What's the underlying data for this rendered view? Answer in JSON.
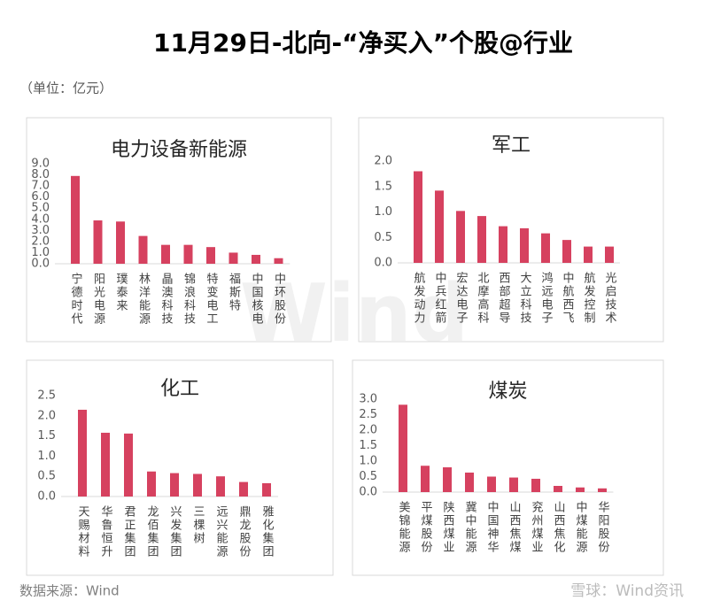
{
  "title": "11月29日-北向-“净买入”个股@行业",
  "unit": "（单位：亿元）",
  "source": "数据来源：Wind",
  "watermark": "Wind",
  "footer": "雪球：Wind资讯",
  "chart_data": [
    {
      "type": "bar",
      "title": "电力设备新能源",
      "color": "#d6415f",
      "categories": [
        "宁德时代",
        "阳光电源",
        "璞泰来",
        "林洋能源",
        "晶澳科技",
        "锦浪科技",
        "特变电工",
        "福斯特",
        "中国核电",
        "中环股份"
      ],
      "values": [
        7.9,
        3.9,
        3.8,
        2.5,
        1.7,
        1.7,
        1.5,
        1.0,
        0.8,
        0.5
      ],
      "ylim": [
        0,
        9
      ],
      "yticks": [
        {
          "value": 0,
          "label": "0.0"
        },
        {
          "value": 1,
          "label": "1.0"
        },
        {
          "value": 2,
          "label": "2.0"
        },
        {
          "value": 3,
          "label": "3.0"
        },
        {
          "value": 4,
          "label": "4.0"
        },
        {
          "value": 5,
          "label": "5.0"
        },
        {
          "value": 6,
          "label": "6.0"
        },
        {
          "value": 7,
          "label": "7.0"
        },
        {
          "value": 8,
          "label": "8.0"
        },
        {
          "value": 9,
          "label": "9.0"
        }
      ],
      "grid": false
    },
    {
      "type": "bar",
      "title": "军工",
      "color": "#d6415f",
      "categories": [
        "航发动力",
        "中兵红箭",
        "宏达电子",
        "北摩高科",
        "西部超导",
        "大立科技",
        "鸿远电子",
        "中航西飞",
        "航发控制",
        "光启技术"
      ],
      "values": [
        1.8,
        1.42,
        1.02,
        0.92,
        0.72,
        0.68,
        0.58,
        0.45,
        0.32,
        0.32
      ],
      "ylim": [
        0,
        2
      ],
      "yticks": [
        {
          "value": 0,
          "label": "0.0"
        },
        0.5,
        {
          "value": 1,
          "label": "1.0"
        },
        1.5,
        {
          "value": 2,
          "label": "2.0"
        }
      ],
      "grid": false
    },
    {
      "type": "bar",
      "title": "化工",
      "color": "#d6415f",
      "categories": [
        "天赐材料",
        "华鲁恒升",
        "君正集团",
        "龙佰集团",
        "兴发集团",
        "三棵树",
        "远兴能源",
        "鼎龙股份",
        "雅化集团"
      ],
      "values": [
        2.15,
        1.58,
        1.56,
        0.62,
        0.58,
        0.56,
        0.5,
        0.36,
        0.33
      ],
      "ylim": [
        0,
        2.5
      ],
      "yticks": [
        {
          "value": 0,
          "label": "0.0"
        },
        0.5,
        {
          "value": 1,
          "label": "1.0"
        },
        1.5,
        {
          "value": 2,
          "label": "2.0"
        },
        2.5
      ],
      "grid": false
    },
    {
      "type": "bar",
      "title": "煤炭",
      "color": "#d6415f",
      "categories": [
        "美锦能源",
        "平煤股份",
        "陕西煤业",
        "冀中能源",
        "中国神华",
        "山西焦煤",
        "兖州煤业",
        "山西焦化",
        "中煤能源",
        "华阳股份"
      ],
      "values": [
        2.82,
        0.85,
        0.8,
        0.63,
        0.5,
        0.47,
        0.43,
        0.2,
        0.15,
        0.12
      ],
      "ylim": [
        0,
        3
      ],
      "yticks": [
        {
          "value": 0,
          "label": "0.0"
        },
        0.5,
        {
          "value": 1,
          "label": "1.0"
        },
        1.5,
        {
          "value": 2,
          "label": "2.0"
        },
        2.5,
        {
          "value": 3,
          "label": "3.0"
        }
      ],
      "grid": false
    }
  ]
}
